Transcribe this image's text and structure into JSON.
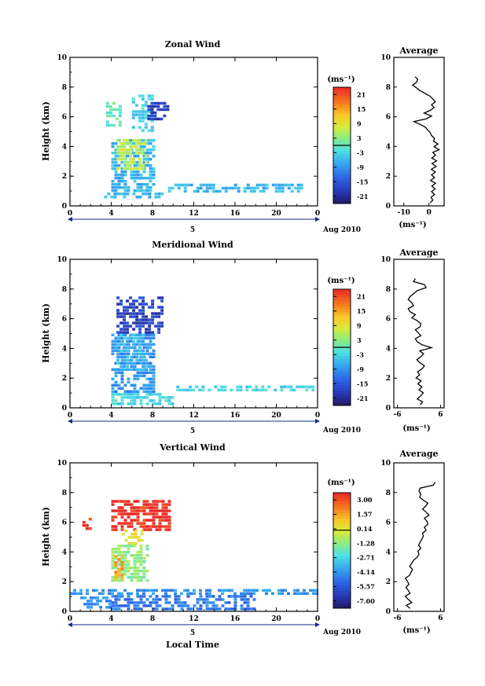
{
  "chart_data": [
    {
      "type": "heatmap",
      "title": "Zonal Wind",
      "ylabel": "Height (km)",
      "xticks": [
        "0",
        "4",
        "8",
        "12",
        "16",
        "20",
        "0"
      ],
      "xlim": [
        0,
        24
      ],
      "ylim": [
        0,
        10
      ],
      "yticks": [
        "0",
        "2",
        "4",
        "6",
        "8",
        "10"
      ],
      "date_tick": "5",
      "date_label": "Aug 2010",
      "colorbar": {
        "unit": "(ms⁻¹)",
        "ticks": [
          "21",
          "15",
          "9",
          "3",
          "-3",
          "-9",
          "-15",
          "-21"
        ],
        "range": [
          -24,
          24
        ]
      },
      "cells": [
        {
          "x": [
            4.0,
            8.0
          ],
          "y": [
            1.0,
            4.5
          ],
          "value": -6
        },
        {
          "x": [
            3.5,
            5.0
          ],
          "y": [
            5.5,
            7.0
          ],
          "value": 0
        },
        {
          "x": [
            6.0,
            8.0
          ],
          "y": [
            5.0,
            7.5
          ],
          "value": -3
        },
        {
          "x": [
            7.5,
            9.5
          ],
          "y": [
            5.8,
            7.0
          ],
          "value": -18
        },
        {
          "x": [
            9.5,
            22.5
          ],
          "y": [
            0.9,
            1.5
          ],
          "value": -6
        },
        {
          "x": [
            3.0,
            9.0
          ],
          "y": [
            0.6,
            0.9
          ],
          "value": -6
        },
        {
          "x": [
            4.5,
            7.5
          ],
          "y": [
            2.5,
            4.5
          ],
          "value": 6
        }
      ],
      "profile": {
        "title": "Average",
        "xlabel": "(ms⁻¹)",
        "xticks": [
          "-10",
          "0"
        ],
        "xlim": [
          -14,
          6
        ],
        "values": [
          0.5,
          1.5,
          0.8,
          2.2,
          1.0,
          2.4,
          1.1,
          2.6,
          0.6,
          2.2,
          1.0,
          2.5,
          0.9,
          2.8,
          1.2,
          3.0,
          1.1,
          2.6,
          1.5,
          4.0,
          2.0,
          3.5,
          1.8,
          2.2,
          1.0,
          0.5,
          -0.5,
          -1.5,
          -3.5,
          -6.0,
          -1.0,
          1.0,
          -2.0,
          0.5,
          2.0,
          1.0,
          2.5,
          1.5,
          0.5,
          -1.5,
          -3.5,
          -5.0,
          -6.5,
          -5.0,
          -4.5,
          -5.5
        ]
      }
    },
    {
      "type": "heatmap",
      "title": "Meridional Wind",
      "ylabel": "Height (km)",
      "xticks": [
        "0",
        "4",
        "8",
        "12",
        "16",
        "20",
        "0"
      ],
      "xlim": [
        0,
        24
      ],
      "ylim": [
        0,
        10
      ],
      "yticks": [
        "0",
        "2",
        "4",
        "6",
        "8",
        "10"
      ],
      "date_tick": "5",
      "date_label": "Aug 2010",
      "colorbar": {
        "unit": "(ms⁻¹)",
        "ticks": [
          "21",
          "15",
          "9",
          "3",
          "-3",
          "-9",
          "-15",
          "-21"
        ],
        "range": [
          -24,
          24
        ]
      },
      "cells": [
        {
          "x": [
            4.0,
            8.0
          ],
          "y": [
            1.0,
            5.0
          ],
          "value": -9
        },
        {
          "x": [
            4.5,
            9.0
          ],
          "y": [
            5.0,
            7.5
          ],
          "value": -18
        },
        {
          "x": [
            4.0,
            10.0
          ],
          "y": [
            0.2,
            1.0
          ],
          "value": -3
        },
        {
          "x": [
            10.0,
            23.5
          ],
          "y": [
            1.1,
            1.5
          ],
          "value": -3
        },
        {
          "x": [
            4.5,
            7.5
          ],
          "y": [
            2.5,
            5.0
          ],
          "value": -6
        }
      ],
      "profile": {
        "title": "Average",
        "xlabel": "(ms⁻¹)",
        "xticks": [
          "-6",
          "6"
        ],
        "xlim": [
          -7,
          7
        ],
        "values": [
          0.3,
          1.0,
          -0.5,
          0.5,
          1.2,
          0.0,
          0.8,
          -0.3,
          0.6,
          -0.8,
          0.2,
          -0.4,
          0.9,
          1.5,
          0.3,
          -0.6,
          0.5,
          1.3,
          0.2,
          3.5,
          0.8,
          -0.5,
          -1.0,
          0.5,
          -0.2,
          -1.0,
          0.3,
          0.5,
          -0.5,
          -2.0,
          -1.0,
          -2.5,
          -3.0,
          -1.5,
          -2.0,
          -3.0,
          -2.5,
          -1.5,
          -0.5,
          2.0,
          1.5,
          -1.5,
          -1.0
        ]
      }
    },
    {
      "type": "heatmap",
      "title": "Vertical Wind",
      "ylabel": "Height (km)",
      "xlabel": "Local Time",
      "xticks": [
        "0",
        "4",
        "8",
        "12",
        "16",
        "20",
        "0"
      ],
      "xlim": [
        0,
        24
      ],
      "ylim": [
        0,
        10
      ],
      "yticks": [
        "0",
        "2",
        "4",
        "6",
        "8",
        "10"
      ],
      "date_tick": "5",
      "date_label": "Aug 2010",
      "colorbar": {
        "unit": "(ms⁻¹)",
        "ticks": [
          "3.00",
          "1.57",
          "0.14",
          "-1.28",
          "-2.71",
          "-4.14",
          "-5.57",
          "-7.00"
        ],
        "range": [
          -7.7,
          3.7
        ]
      },
      "cells": [
        {
          "x": [
            4.0,
            9.5
          ],
          "y": [
            5.5,
            7.5
          ],
          "value": 3.5
        },
        {
          "x": [
            5.0,
            7.0
          ],
          "y": [
            4.5,
            5.5
          ],
          "value": 0.14
        },
        {
          "x": [
            4.0,
            7.5
          ],
          "y": [
            2.0,
            4.5
          ],
          "value": -1.28
        },
        {
          "x": [
            4.3,
            5.0
          ],
          "y": [
            2.2,
            3.8
          ],
          "value": 1.6
        },
        {
          "x": [
            0.0,
            25.0
          ],
          "y": [
            1.1,
            1.5
          ],
          "value": -4.14
        },
        {
          "x": [
            4.0,
            18.0
          ],
          "y": [
            0.2,
            1.1
          ],
          "value": -4.8
        },
        {
          "x": [
            1.0,
            4.0
          ],
          "y": [
            0.3,
            1.0
          ],
          "value": -4.14
        },
        {
          "x": [
            1.2,
            1.9
          ],
          "y": [
            5.5,
            6.3
          ],
          "value": 3.5
        }
      ],
      "profile": {
        "title": "Average",
        "xlabel": "(ms⁻¹)",
        "xticks": [
          "-6",
          "6"
        ],
        "xlim": [
          -7,
          7
        ],
        "values": [
          -2.5,
          -3.5,
          -2.0,
          -3.0,
          -3.8,
          -2.5,
          -3.0,
          -3.6,
          -2.8,
          -3.2,
          -3.8,
          -2.6,
          -2.2,
          -1.8,
          -2.6,
          -2.0,
          -1.5,
          -0.5,
          0.0,
          -0.3,
          0.5,
          -0.1,
          0.3,
          0.8,
          1.2,
          1.0,
          2.0,
          1.5,
          2.5,
          2.2,
          1.5,
          2.8,
          2.0,
          1.0,
          1.8,
          2.5,
          1.2,
          0.2,
          0.5,
          0.0,
          0.3,
          4.0,
          4.5
        ]
      }
    }
  ]
}
